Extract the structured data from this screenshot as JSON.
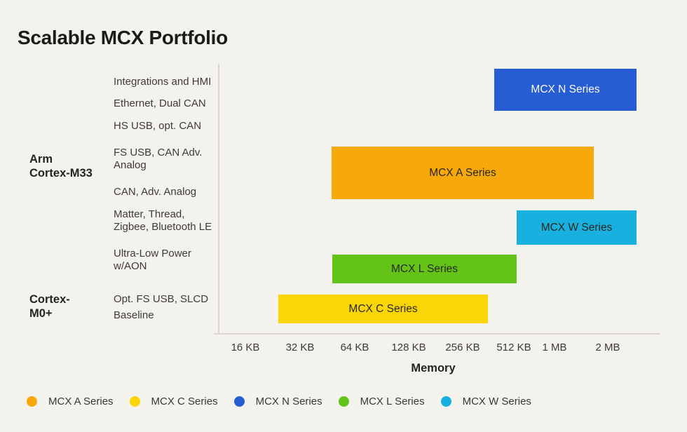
{
  "title": "Scalable MCX Portfolio",
  "colors": {
    "background": "#F4F2ED",
    "title_text": "#1D1B18",
    "label_text": "#3E3B36",
    "axis_line": "#DBD7D0",
    "mcx_a": "#F7A80A",
    "mcx_c": "#FBD606",
    "mcx_n": "#275DD3",
    "mcx_l": "#64C319",
    "mcx_w": "#17B0DF"
  },
  "groups": [
    {
      "label": "Arm\nCortex-M33"
    },
    {
      "label": "Cortex-\nM0+"
    }
  ],
  "feature_labels": [
    "Integrations and HMI",
    "Ethernet, Dual CAN",
    "HS USB, opt. CAN",
    "FS USB, CAN Adv.\nAnalog",
    "CAN, Adv. Analog",
    "Matter, Thread,\nZigbee, Bluetooth LE",
    "Ultra-Low Power\nw/AON",
    "Opt. FS USB, SLCD",
    "Baseline"
  ],
  "bars": [
    {
      "label": "MCX N Series"
    },
    {
      "label": "MCX A Series"
    },
    {
      "label": "MCX W Series"
    },
    {
      "label": "MCX L Series"
    },
    {
      "label": "MCX C Series"
    }
  ],
  "axis": {
    "ticks": [
      "16 KB",
      "32 KB",
      "64 KB",
      "128 KB",
      "256 KB",
      "512 KB",
      "1 MB",
      "2 MB"
    ],
    "xlabel": "Memory"
  },
  "legend": [
    {
      "label": "MCX A Series",
      "color": "#F7A80A"
    },
    {
      "label": "MCX C Series",
      "color": "#FBD606"
    },
    {
      "label": "MCX N Series",
      "color": "#275DD3"
    },
    {
      "label": "MCX L Series",
      "color": "#64C319"
    },
    {
      "label": "MCX W Series",
      "color": "#17B0DF"
    }
  ],
  "chart_data": {
    "type": "range-bar",
    "title": "Scalable MCX Portfolio",
    "xlabel": "Memory",
    "x_scale": "log2 (each tick doubles memory)",
    "x_ticks": [
      "16 KB",
      "32 KB",
      "64 KB",
      "128 KB",
      "256 KB",
      "512 KB",
      "1 MB",
      "2 MB"
    ],
    "y_rows": [
      "Integrations and HMI",
      "Ethernet, Dual CAN",
      "HS USB, opt. CAN",
      "FS USB, CAN Adv. Analog",
      "CAN, Adv. Analog",
      "Matter, Thread, Zigbee, Bluetooth LE",
      "Ultra-Low Power w/AON",
      "Opt. FS USB, SLCD",
      "Baseline"
    ],
    "y_groups": [
      {
        "label": "Arm Cortex-M33",
        "aligned_near_row": "FS USB, CAN Adv. Analog"
      },
      {
        "label": "Cortex-M0+",
        "aligned_near_row": "Opt. FS USB, SLCD"
      }
    ],
    "series": [
      {
        "name": "MCX N Series",
        "color": "#275DD3",
        "label_color": "white",
        "memory_range_est": [
          "~384 KB",
          "~3 MB"
        ],
        "rows_covered": [
          "Integrations and HMI",
          "Ethernet, Dual CAN"
        ]
      },
      {
        "name": "MCX A Series",
        "color": "#F7A80A",
        "label_color": "dark",
        "memory_range_est": [
          "~48 KB",
          "~1.7 MB"
        ],
        "rows_covered": [
          "FS USB, CAN Adv. Analog",
          "CAN, Adv. Analog"
        ]
      },
      {
        "name": "MCX W Series",
        "color": "#17B0DF",
        "label_color": "dark",
        "memory_range_est": [
          "512 KB",
          "~3 MB"
        ],
        "rows_covered": [
          "Matter, Thread, Zigbee, Bluetooth LE"
        ]
      },
      {
        "name": "MCX L Series",
        "color": "#64C319",
        "label_color": "dark",
        "memory_range_est": [
          "~48 KB",
          "512 KB"
        ],
        "rows_covered": [
          "Ultra-Low Power w/AON"
        ]
      },
      {
        "name": "MCX C Series",
        "color": "#FBD606",
        "label_color": "dark",
        "memory_range_est": [
          "~24 KB",
          "~360 KB"
        ],
        "rows_covered": [
          "Opt. FS USB, SLCD",
          "Baseline"
        ]
      }
    ],
    "legend_entries": [
      "MCX A Series",
      "MCX C Series",
      "MCX N Series",
      "MCX L Series",
      "MCX W Series"
    ],
    "legend_position": "bottom-left",
    "grid": false
  }
}
